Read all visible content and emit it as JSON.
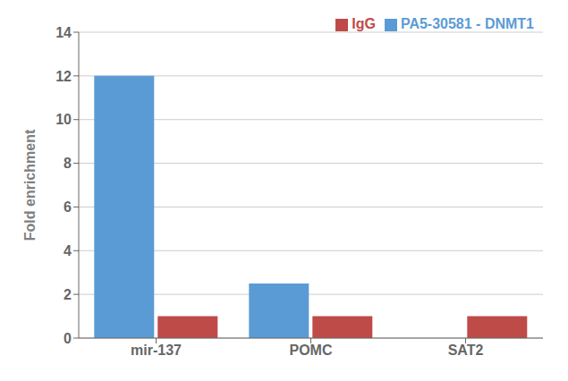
{
  "chart_data": {
    "type": "bar",
    "categories": [
      "mir-137",
      "POMC",
      "SAT2"
    ],
    "series": [
      {
        "name": "PA5-30581 - DNMT1",
        "color": "#5B9BD5",
        "values": [
          12.0,
          2.5,
          0.0
        ]
      },
      {
        "name": "IgG",
        "color": "#BE4B48",
        "values": [
          1.0,
          1.0,
          1.0
        ]
      }
    ],
    "ylabel": "Fold enrichment",
    "ylim": [
      0,
      14
    ],
    "yticks": [
      0,
      2,
      4,
      6,
      8,
      10,
      12,
      14
    ],
    "grid": true,
    "legend": "upper right"
  }
}
